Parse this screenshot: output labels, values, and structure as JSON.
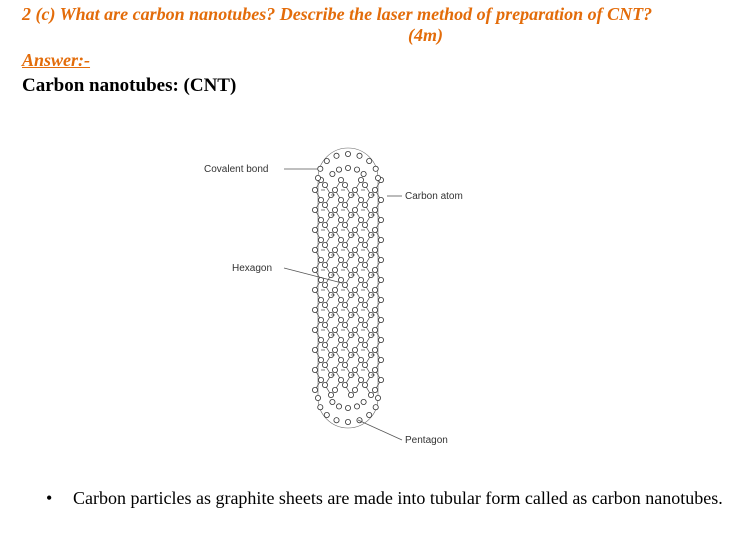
{
  "question": {
    "text": "2 (c) What are carbon nanotubes? Describe the laser method of preparation of CNT?",
    "marks": "(4m)"
  },
  "answer_heading": "Answer:-",
  "subheading": "Carbon nanotubes: (CNT)",
  "figure": {
    "labels": {
      "covalent_bond": "Covalent bond",
      "hexagon": "Hexagon",
      "carbon_atom": "Carbon atom",
      "pentagon": "Pentagon"
    }
  },
  "bullets": [
    {
      "symbol": "•",
      "text": "Carbon particles as graphite sheets are made into tubular form called as carbon nanotubes."
    }
  ]
}
